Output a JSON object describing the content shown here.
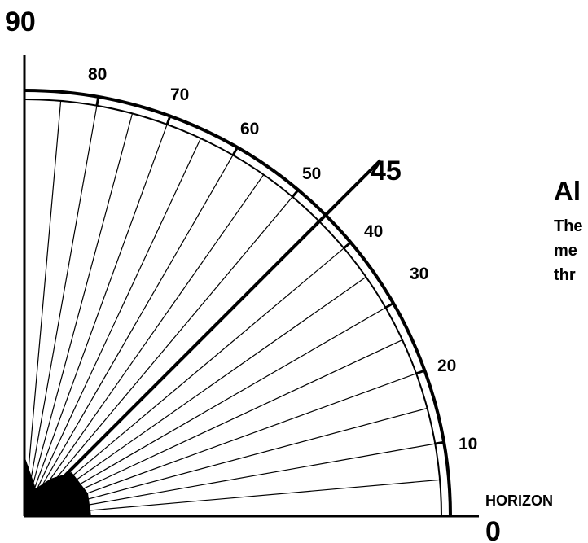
{
  "axis_labels": {
    "vertical": "90",
    "horizontal": "0",
    "horizon": "HORIZON",
    "highlight": "45"
  },
  "scale": {
    "min_deg": 0,
    "max_deg": 90,
    "ray_step_deg": 5,
    "major_step_deg": 10,
    "highlight_deg": 45,
    "tick_labels": [
      "10",
      "20",
      "30",
      "40",
      "50",
      "60",
      "70",
      "80"
    ]
  },
  "side_text": {
    "title": "Al",
    "lines": [
      "The",
      "me",
      "thr"
    ]
  },
  "colors": {
    "ink": "#000000",
    "paper": "#ffffff"
  }
}
